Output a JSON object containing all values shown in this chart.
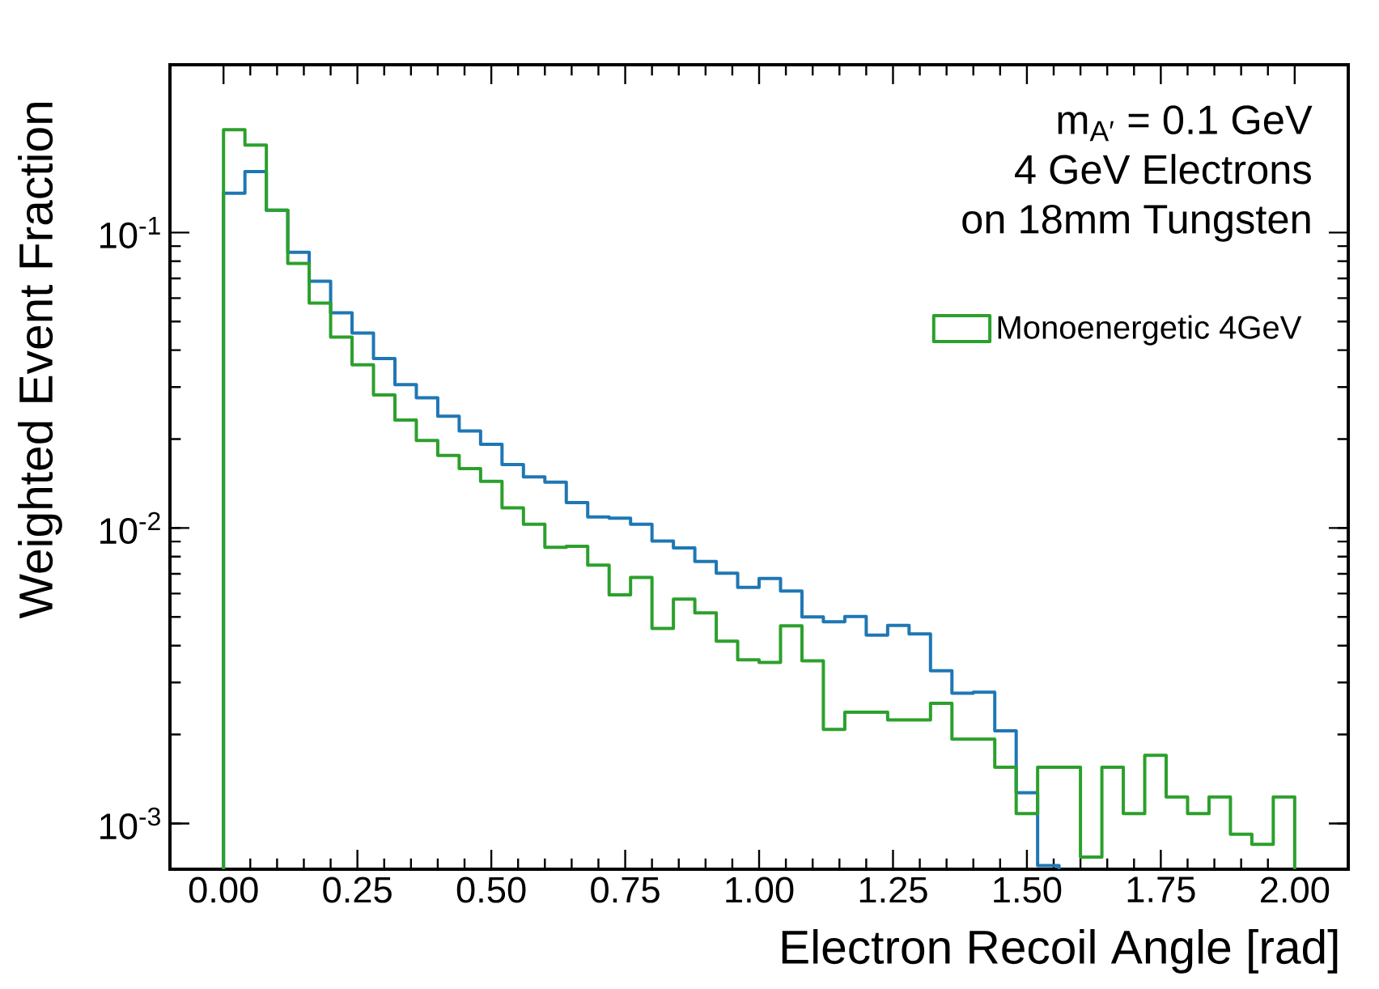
{
  "chart_data": {
    "type": "histogram",
    "xlabel": "Electron Recoil Angle [rad]",
    "ylabel": "Weighted Event Fraction",
    "annotations": [
      "m$_{A′}$ = 0.1 GeV",
      "4 GeV Electrons",
      "on 18mm Tungsten"
    ],
    "bins": [
      0,
      0.04,
      0.08,
      0.12,
      0.16,
      0.2,
      0.24,
      0.28,
      0.32,
      0.36,
      0.4,
      0.44,
      0.48,
      0.52,
      0.56,
      0.6,
      0.64,
      0.68,
      0.72,
      0.76,
      0.8,
      0.84,
      0.88,
      0.92,
      0.96,
      1.0,
      1.04,
      1.08,
      1.12,
      1.16,
      1.2,
      1.24,
      1.28,
      1.32,
      1.36,
      1.4,
      1.44,
      1.48,
      1.52,
      1.56,
      1.6,
      1.64,
      1.68,
      1.72,
      1.76,
      1.8,
      1.84,
      1.88,
      1.92,
      1.96,
      2.0
    ],
    "series": [
      {
        "color": "#1f77b4",
        "bins": [
          0,
          0.04,
          0.08,
          0.12,
          0.16,
          0.2,
          0.24,
          0.28,
          0.32,
          0.36,
          0.4,
          0.44,
          0.48,
          0.52,
          0.56,
          0.6,
          0.64,
          0.68,
          0.72,
          0.76,
          0.8,
          0.84,
          0.88,
          0.92,
          0.96,
          1.0,
          1.04,
          1.08,
          1.12,
          1.16,
          1.2,
          1.24,
          1.28,
          1.32,
          1.36,
          1.4,
          1.44,
          1.48,
          1.52,
          1.56
        ],
        "values": [
          0.136,
          0.161,
          0.119,
          0.0857,
          0.0685,
          0.0535,
          0.0457,
          0.0375,
          0.0306,
          0.0276,
          0.0239,
          0.0213,
          0.0192,
          0.0164,
          0.0149,
          0.0143,
          0.0122,
          0.0109,
          0.0108,
          0.0103,
          0.00904,
          0.00857,
          0.00771,
          0.00703,
          0.0063,
          0.00675,
          0.00612,
          0.005,
          0.00482,
          0.00502,
          0.00434,
          0.00468,
          0.00438,
          0.00329,
          0.00276,
          0.00278,
          0.00206,
          0.00127,
          0.00072
        ]
      },
      {
        "name": "Monoenergetic 4GeV",
        "color": "#2ca02c",
        "values": [
          0.223,
          0.198,
          0.119,
          0.0787,
          0.0577,
          0.0443,
          0.0357,
          0.0282,
          0.0232,
          0.0198,
          0.0176,
          0.0159,
          0.0144,
          0.0117,
          0.0103,
          0.0086,
          0.00867,
          0.00749,
          0.00594,
          0.0068,
          0.00457,
          0.00575,
          0.00516,
          0.00414,
          0.00358,
          0.00351,
          0.00467,
          0.00355,
          0.00208,
          0.00238,
          0.00238,
          0.00224,
          0.00224,
          0.00255,
          0.00193,
          0.00193,
          0.00155,
          0.00108,
          0.00155,
          0.00155,
          0.00077,
          0.00155,
          0.00108,
          0.0017,
          0.00123,
          0.00108,
          0.00123,
          0.00092,
          0.00085,
          0.00123
        ]
      }
    ],
    "log": "y",
    "legend": "top right",
    "xlim": [
      -0.1,
      2.1
    ],
    "ylim": [
      0.0007,
      0.37
    ],
    "xticks": [
      {
        "value": 0,
        "label": "0.00"
      },
      {
        "value": 0.25,
        "label": "0.25"
      },
      {
        "value": 0.5,
        "label": "0.50"
      },
      {
        "value": 0.75,
        "label": "0.75"
      },
      {
        "value": 1.0,
        "label": "1.00"
      },
      {
        "value": 1.25,
        "label": "1.25"
      },
      {
        "value": 1.5,
        "label": "1.50"
      },
      {
        "value": 1.75,
        "label": "1.75"
      },
      {
        "value": 2.0,
        "label": "2.00"
      }
    ],
    "yticks": [
      {
        "value": 0.001,
        "label": "10$^{-3}$"
      },
      {
        "value": 0.01,
        "label": "10$^{-2}$"
      },
      {
        "value": 0.1,
        "label": "10$^{-1}$"
      }
    ]
  }
}
